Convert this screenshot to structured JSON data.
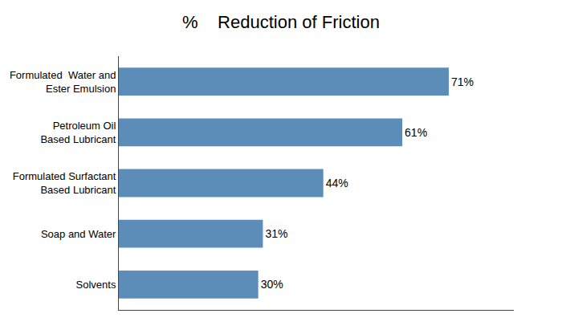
{
  "chart_data": {
    "type": "bar",
    "orientation": "horizontal",
    "title": "%    Reduction of Friction",
    "categories": [
      "Formulated  Water and\nEster Emulsion",
      "Petroleum Oil\nBased Lubricant",
      "Formulated Surfactant\nBased Lubricant",
      "Soap and Water",
      "Solvents"
    ],
    "values": [
      71,
      61,
      44,
      31,
      30
    ],
    "value_labels": [
      "71%",
      "61%",
      "44%",
      "31%",
      "30%"
    ],
    "color": "#5B8DB8",
    "xlim": [
      0,
      85
    ],
    "data_labels": true,
    "tick_labels": "y",
    "grid": false
  }
}
